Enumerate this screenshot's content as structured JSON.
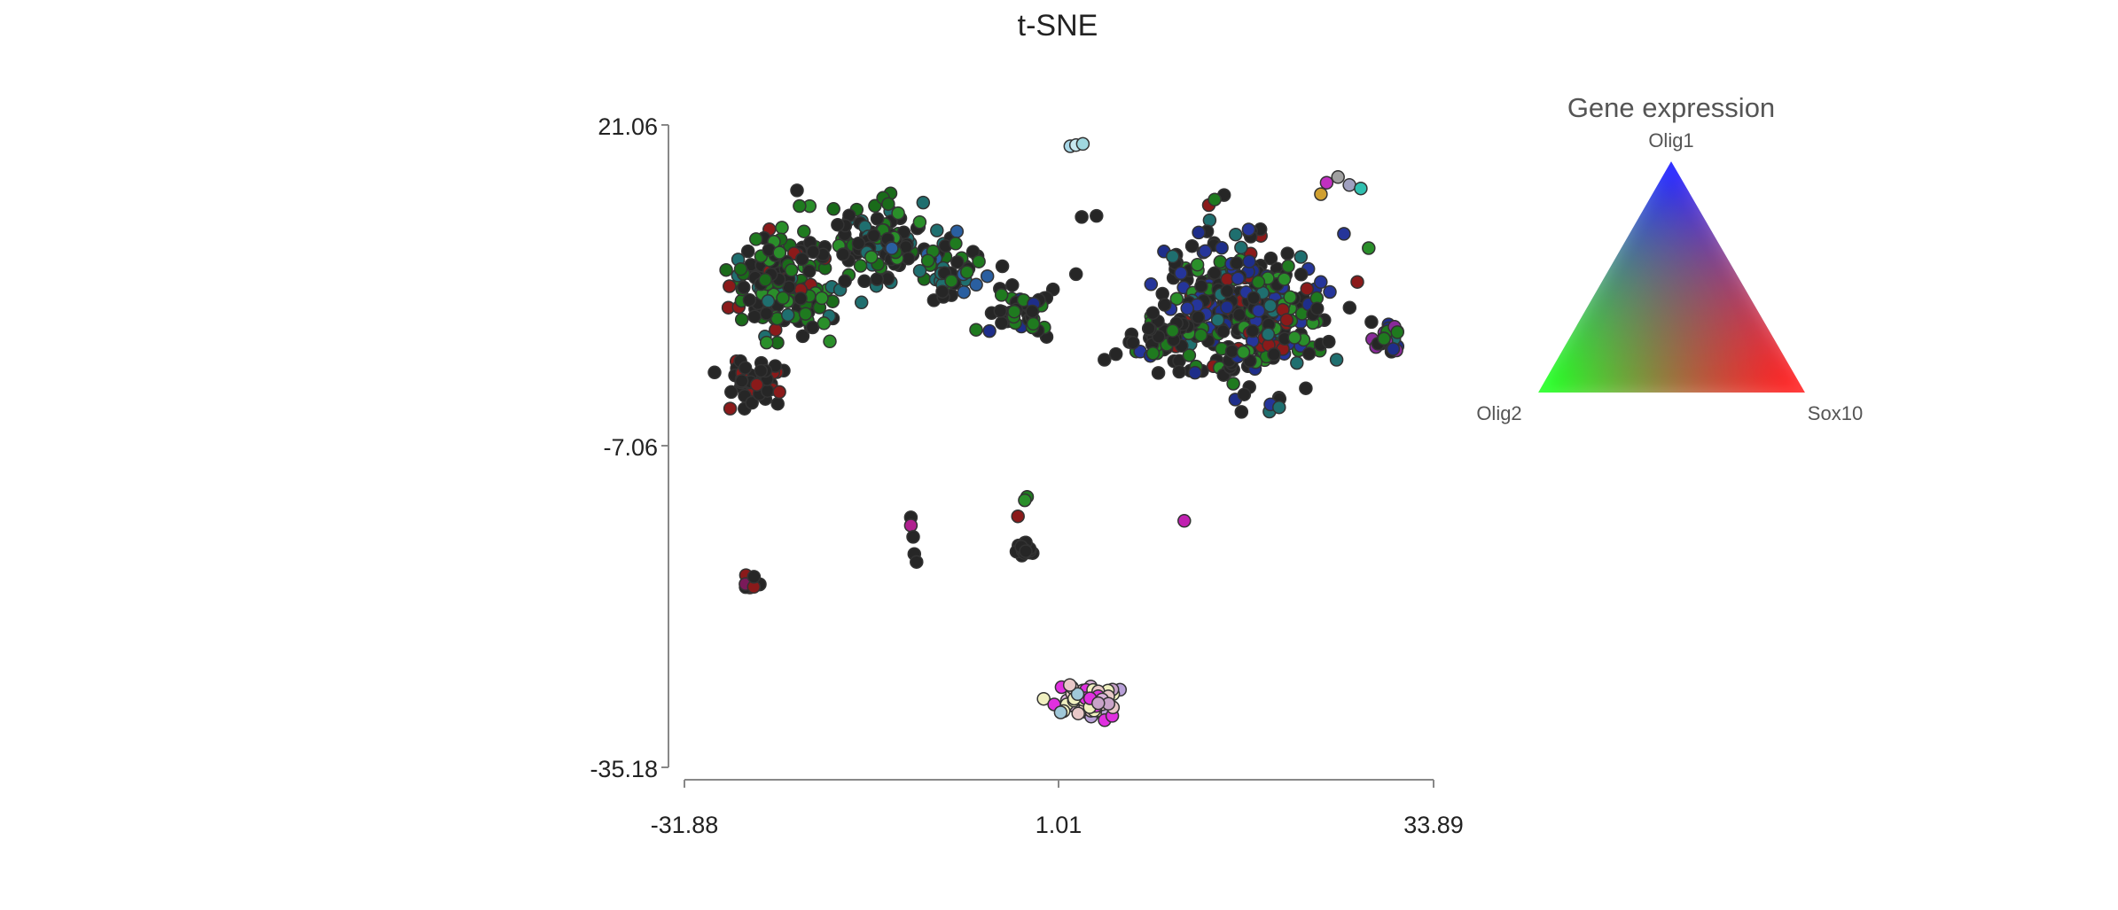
{
  "chart_data": {
    "type": "scatter",
    "title": "t-SNE",
    "x_ticks": [
      "-31.88",
      "1.01",
      "33.89"
    ],
    "y_ticks": [
      "21.06",
      "-7.06",
      "-35.18"
    ],
    "xlim": [
      -31.88,
      33.89
    ],
    "ylim": [
      -35.18,
      21.06
    ],
    "legend": {
      "title": "Gene expression",
      "top": "Olig1",
      "left": "Olig2",
      "right": "Sox10",
      "placement": "right"
    },
    "colors": {
      "background_cell": "#262626",
      "olig1": "#2b2bff",
      "olig2": "#2bd92b",
      "sox10": "#ff2b2b",
      "stroke": "#333333"
    },
    "clusters": [
      {
        "cx": -23.0,
        "cy": 7.5,
        "sx": 4.0,
        "sy": 4.5,
        "n": 150,
        "palette": [
          "#262626",
          "#262626",
          "#262626",
          "#262626",
          "#1f7a1f",
          "#2a8f2a",
          "#1a6b1a",
          "#8b1a1a",
          "#1f6f6f"
        ]
      },
      {
        "cx": -14.5,
        "cy": 11.0,
        "sx": 3.5,
        "sy": 2.6,
        "n": 110,
        "palette": [
          "#262626",
          "#262626",
          "#262626",
          "#1f7a1f",
          "#2a8f2a",
          "#1a6b1a",
          "#1f6f6f"
        ]
      },
      {
        "cx": -25.5,
        "cy": -1.5,
        "sx": 2.0,
        "sy": 1.8,
        "n": 45,
        "palette": [
          "#262626",
          "#262626",
          "#262626",
          "#262626",
          "#8b1a1a"
        ]
      },
      {
        "cx": -8.5,
        "cy": 8.5,
        "sx": 3.0,
        "sy": 2.0,
        "n": 45,
        "palette": [
          "#262626",
          "#262626",
          "#1f7a1f",
          "#2a5fa0",
          "#1e2e8a",
          "#1f6f6f"
        ]
      },
      {
        "cx": -2.5,
        "cy": 4.5,
        "sx": 2.5,
        "sy": 2.0,
        "n": 50,
        "palette": [
          "#262626",
          "#262626",
          "#262626",
          "#1f7a1f",
          "#1e2e8a"
        ]
      },
      {
        "cx": 17.0,
        "cy": 5.0,
        "sx": 6.0,
        "sy": 5.5,
        "n": 340,
        "palette": [
          "#262626",
          "#262626",
          "#262626",
          "#262626",
          "#1e2e8a",
          "#25359a",
          "#1f7a1f",
          "#2a8f2a",
          "#8b1a1a",
          "#1f6f6f"
        ]
      },
      {
        "cx": 10.0,
        "cy": 2.5,
        "sx": 2.6,
        "sy": 2.0,
        "n": 40,
        "palette": [
          "#262626",
          "#262626",
          "#262626",
          "#1f7a1f"
        ]
      },
      {
        "cx": 30.0,
        "cy": 2.5,
        "sx": 0.9,
        "sy": 1.1,
        "n": 30,
        "palette": [
          "#1f6f6f",
          "#1e2e8a",
          "#1f7a1f",
          "#262626",
          "#8a2a9a"
        ]
      },
      {
        "cx": 3.5,
        "cy": -29.3,
        "sx": 2.3,
        "sy": 1.2,
        "n": 70,
        "palette": [
          "#c9a3c9",
          "#d9b3d9",
          "#e8c8c8",
          "#b8a0d8",
          "#e030e0",
          "#f0f0c0",
          "#a0c8d8"
        ]
      },
      {
        "cx": -2.0,
        "cy": -16.0,
        "sx": 0.7,
        "sy": 0.5,
        "n": 22,
        "palette": [
          "#262626"
        ]
      },
      {
        "cx": -26.0,
        "cy": -19.0,
        "sx": 0.9,
        "sy": 0.5,
        "n": 12,
        "palette": [
          "#8b1a1a",
          "#b0208f",
          "#7a1a5a",
          "#262626"
        ]
      }
    ],
    "fixed_points": [
      {
        "x": 2.0,
        "y": 19.2,
        "c": "#a8d8e8"
      },
      {
        "x": 2.5,
        "y": 19.3,
        "c": "#c8e8f0"
      },
      {
        "x": 3.1,
        "y": 19.4,
        "c": "#a0d8e0"
      },
      {
        "x": 3.0,
        "y": 13.0,
        "c": "#262626"
      },
      {
        "x": 4.3,
        "y": 13.1,
        "c": "#262626"
      },
      {
        "x": 2.5,
        "y": 8.0,
        "c": "#262626"
      },
      {
        "x": 7.5,
        "y": 2.0,
        "c": "#262626"
      },
      {
        "x": 6.0,
        "y": 1.0,
        "c": "#262626"
      },
      {
        "x": 5.0,
        "y": 0.5,
        "c": "#262626"
      },
      {
        "x": -12.0,
        "y": -13.3,
        "c": "#262626"
      },
      {
        "x": -12.0,
        "y": -14.0,
        "c": "#b0208f"
      },
      {
        "x": -11.8,
        "y": -15.0,
        "c": "#262626"
      },
      {
        "x": -11.7,
        "y": -16.5,
        "c": "#262626"
      },
      {
        "x": -11.5,
        "y": -17.2,
        "c": "#262626"
      },
      {
        "x": -1.8,
        "y": -11.5,
        "c": "#1f7a1f"
      },
      {
        "x": -2.0,
        "y": -11.8,
        "c": "#2a8f2a"
      },
      {
        "x": -2.6,
        "y": -13.2,
        "c": "#8b1a1a"
      },
      {
        "x": 12.0,
        "y": -13.6,
        "c": "#c020b0"
      },
      {
        "x": 24.5,
        "y": 16.0,
        "c": "#c030c0"
      },
      {
        "x": 25.5,
        "y": 16.5,
        "c": "#a0a0a0"
      },
      {
        "x": 26.5,
        "y": 15.8,
        "c": "#a0a0c0"
      },
      {
        "x": 27.5,
        "y": 15.5,
        "c": "#30c0b0"
      },
      {
        "x": 24.0,
        "y": 15.0,
        "c": "#d0a030"
      }
    ]
  }
}
